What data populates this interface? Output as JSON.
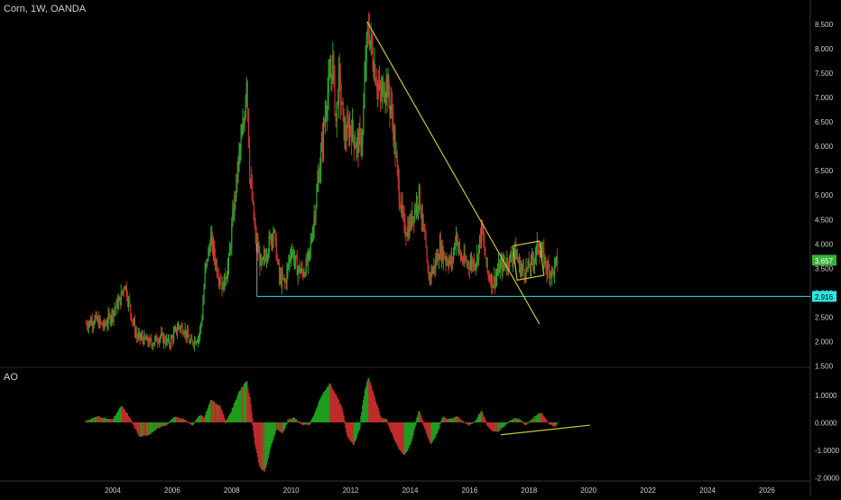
{
  "header": {
    "symbol_label": "Corn, 1W, OANDA"
  },
  "indicator": {
    "label": "AO"
  },
  "colors": {
    "background": "#000000",
    "up_candle": "#2ea52e",
    "down_candle": "#c8322d",
    "trendline": "#c9c23a",
    "support_line": "#25c9c9",
    "last_price_badge": "#3bb13b",
    "support_badge": "#29e4e4",
    "axis_text": "#cfcfcf",
    "ao_up": "#1f9c1f",
    "ao_down": "#c02a2a"
  },
  "price_axis": {
    "ticks": [
      "8.500",
      "8.000",
      "7.500",
      "7.000",
      "6.500",
      "6.000",
      "5.500",
      "5.000",
      "4.500",
      "4.000",
      "3.500",
      "3.000",
      "2.500",
      "2.000",
      "1.500"
    ],
    "last_price": "3.657",
    "support_price": "2.916"
  },
  "ao_axis": {
    "ticks": [
      "1.0000",
      "0.0000",
      "-1.0000",
      "-2.0000"
    ]
  },
  "time_axis": {
    "ticks": [
      "2004",
      "2006",
      "2008",
      "2010",
      "2012",
      "2014",
      "2016",
      "2018",
      "2020",
      "2022",
      "2024",
      "2026"
    ]
  },
  "chart_data": {
    "type": "candlestick",
    "title": "Corn, 1W, OANDA",
    "ylim": [
      1.5,
      8.7
    ],
    "xlim": [
      2002.7,
      2027.8
    ],
    "price_path": [
      [
        2003.1,
        2.35
      ],
      [
        2003.4,
        2.45
      ],
      [
        2003.7,
        2.3
      ],
      [
        2004.0,
        2.6
      ],
      [
        2004.25,
        2.85
      ],
      [
        2004.4,
        3.2
      ],
      [
        2004.6,
        2.6
      ],
      [
        2004.8,
        2.1
      ],
      [
        2005.0,
        2.05
      ],
      [
        2005.3,
        1.95
      ],
      [
        2005.6,
        2.1
      ],
      [
        2005.9,
        1.95
      ],
      [
        2006.2,
        2.3
      ],
      [
        2006.4,
        2.25
      ],
      [
        2006.6,
        1.95
      ],
      [
        2006.9,
        2.1
      ],
      [
        2007.0,
        2.5
      ],
      [
        2007.1,
        3.4
      ],
      [
        2007.3,
        4.1
      ],
      [
        2007.5,
        3.5
      ],
      [
        2007.7,
        3.1
      ],
      [
        2007.9,
        3.6
      ],
      [
        2008.0,
        4.3
      ],
      [
        2008.25,
        5.8
      ],
      [
        2008.4,
        6.4
      ],
      [
        2008.5,
        7.5
      ],
      [
        2008.6,
        5.5
      ],
      [
        2008.8,
        4.1
      ],
      [
        2009.0,
        3.5
      ],
      [
        2009.2,
        3.9
      ],
      [
        2009.4,
        4.3
      ],
      [
        2009.6,
        3.3
      ],
      [
        2009.8,
        3.2
      ],
      [
        2010.0,
        3.9
      ],
      [
        2010.2,
        3.5
      ],
      [
        2010.4,
        3.4
      ],
      [
        2010.6,
        3.7
      ],
      [
        2010.8,
        4.7
      ],
      [
        2011.0,
        5.8
      ],
      [
        2011.2,
        7.0
      ],
      [
        2011.4,
        7.7
      ],
      [
        2011.5,
        6.5
      ],
      [
        2011.6,
        7.4
      ],
      [
        2011.8,
        6.2
      ],
      [
        2012.0,
        6.4
      ],
      [
        2012.2,
        6.0
      ],
      [
        2012.4,
        6.2
      ],
      [
        2012.5,
        7.8
      ],
      [
        2012.6,
        8.4
      ],
      [
        2012.8,
        7.6
      ],
      [
        2013.0,
        7.0
      ],
      [
        2013.2,
        7.3
      ],
      [
        2013.4,
        6.6
      ],
      [
        2013.6,
        5.2
      ],
      [
        2013.8,
        4.3
      ],
      [
        2013.95,
        4.3
      ],
      [
        2014.1,
        4.6
      ],
      [
        2014.3,
        5.0
      ],
      [
        2014.5,
        4.0
      ],
      [
        2014.6,
        3.3
      ],
      [
        2014.8,
        3.5
      ],
      [
        2015.0,
        3.9
      ],
      [
        2015.2,
        3.7
      ],
      [
        2015.4,
        3.6
      ],
      [
        2015.55,
        4.2
      ],
      [
        2015.7,
        3.7
      ],
      [
        2015.9,
        3.6
      ],
      [
        2016.1,
        3.6
      ],
      [
        2016.25,
        3.7
      ],
      [
        2016.4,
        4.3
      ],
      [
        2016.6,
        3.4
      ],
      [
        2016.8,
        3.2
      ],
      [
        2017.0,
        3.5
      ],
      [
        2017.2,
        3.6
      ],
      [
        2017.4,
        3.7
      ],
      [
        2017.5,
        3.9
      ],
      [
        2017.7,
        3.5
      ],
      [
        2017.9,
        3.45
      ],
      [
        2018.1,
        3.6
      ],
      [
        2018.3,
        3.95
      ],
      [
        2018.5,
        3.7
      ],
      [
        2018.6,
        3.5
      ],
      [
        2018.8,
        3.4
      ],
      [
        2018.95,
        3.657
      ]
    ],
    "ao_values": [
      [
        2003.1,
        0.05
      ],
      [
        2003.5,
        0.2
      ],
      [
        2004.0,
        0.1
      ],
      [
        2004.3,
        0.6
      ],
      [
        2004.6,
        0.1
      ],
      [
        2004.9,
        -0.5
      ],
      [
        2005.2,
        -0.45
      ],
      [
        2005.5,
        -0.2
      ],
      [
        2005.8,
        -0.1
      ],
      [
        2006.1,
        0.2
      ],
      [
        2006.4,
        0.1
      ],
      [
        2006.7,
        -0.1
      ],
      [
        2006.9,
        0.25
      ],
      [
        2007.1,
        0.2
      ],
      [
        2007.3,
        0.8
      ],
      [
        2007.6,
        0.6
      ],
      [
        2007.8,
        0.0
      ],
      [
        2008.0,
        0.4
      ],
      [
        2008.25,
        1.1
      ],
      [
        2008.5,
        1.5
      ],
      [
        2008.6,
        0.9
      ],
      [
        2008.8,
        -0.8
      ],
      [
        2008.95,
        -1.6
      ],
      [
        2009.1,
        -1.8
      ],
      [
        2009.3,
        -0.9
      ],
      [
        2009.5,
        -0.2
      ],
      [
        2009.7,
        -0.4
      ],
      [
        2009.9,
        0.1
      ],
      [
        2010.1,
        0.15
      ],
      [
        2010.4,
        -0.1
      ],
      [
        2010.6,
        -0.1
      ],
      [
        2010.8,
        0.3
      ],
      [
        2011.0,
        0.9
      ],
      [
        2011.3,
        1.4
      ],
      [
        2011.5,
        1.0
      ],
      [
        2011.7,
        0.5
      ],
      [
        2011.9,
        -0.5
      ],
      [
        2012.1,
        -0.8
      ],
      [
        2012.3,
        -0.2
      ],
      [
        2012.5,
        1.2
      ],
      [
        2012.6,
        1.6
      ],
      [
        2012.8,
        0.9
      ],
      [
        2013.0,
        0.2
      ],
      [
        2013.2,
        0.1
      ],
      [
        2013.4,
        -0.4
      ],
      [
        2013.6,
        -0.9
      ],
      [
        2013.8,
        -1.2
      ],
      [
        2014.0,
        -0.8
      ],
      [
        2014.3,
        0.4
      ],
      [
        2014.5,
        -0.2
      ],
      [
        2014.7,
        -0.8
      ],
      [
        2014.9,
        -0.4
      ],
      [
        2015.1,
        0.2
      ],
      [
        2015.3,
        0.1
      ],
      [
        2015.6,
        0.2
      ],
      [
        2015.8,
        0.0
      ],
      [
        2016.0,
        -0.1
      ],
      [
        2016.2,
        0.05
      ],
      [
        2016.4,
        0.4
      ],
      [
        2016.6,
        -0.1
      ],
      [
        2016.8,
        -0.35
      ],
      [
        2017.0,
        -0.3
      ],
      [
        2017.3,
        0.0
      ],
      [
        2017.5,
        0.15
      ],
      [
        2017.7,
        0.1
      ],
      [
        2017.9,
        -0.1
      ],
      [
        2018.2,
        0.2
      ],
      [
        2018.4,
        0.35
      ],
      [
        2018.6,
        0.05
      ],
      [
        2018.8,
        -0.15
      ],
      [
        2018.95,
        -0.1
      ]
    ],
    "trendline": {
      "from": [
        2012.55,
        8.55
      ],
      "to": [
        2018.35,
        2.35
      ]
    },
    "support_line": {
      "from": [
        2008.85,
        2.916
      ],
      "to": [
        2027.8,
        2.916
      ],
      "value": 2.916
    },
    "channel": [
      [
        2017.45,
        3.95
      ],
      [
        2018.35,
        4.05
      ],
      [
        2018.5,
        3.35
      ],
      [
        2017.6,
        3.25
      ]
    ],
    "ao_trendline": {
      "from": [
        2017.05,
        -0.45
      ],
      "to": [
        2020.05,
        -0.1
      ]
    }
  }
}
